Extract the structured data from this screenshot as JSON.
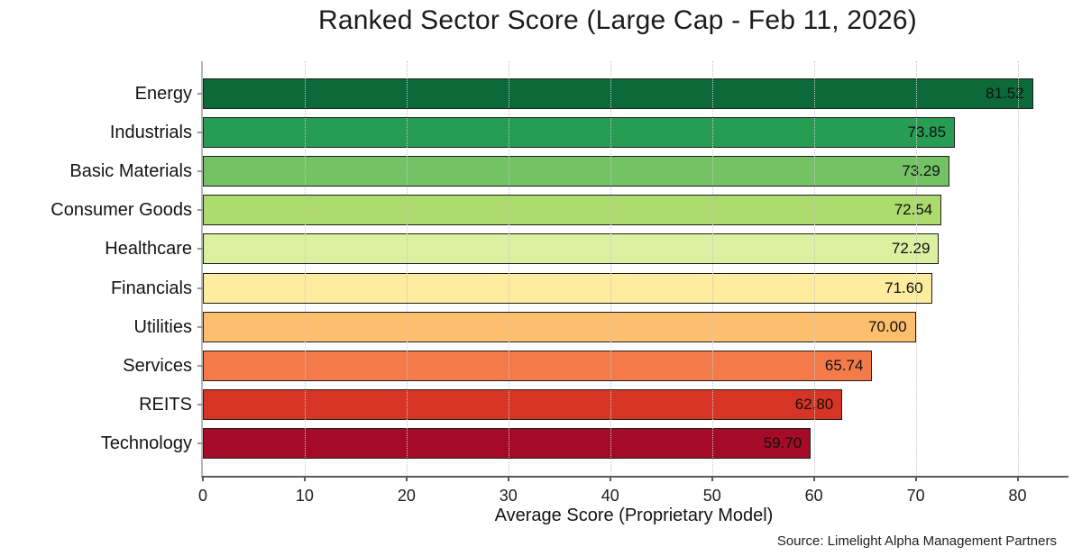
{
  "chart_data": {
    "type": "bar",
    "orientation": "horizontal",
    "title": "Ranked Sector Score (Large Cap - Feb 11, 2026)",
    "xlabel": "Average Score (Proprietary Model)",
    "ylabel": "",
    "source_note": "Source: Limelight Alpha Management Partners",
    "categories": [
      "Energy",
      "Industrials",
      "Basic Materials",
      "Consumer Goods",
      "Healthcare",
      "Financials",
      "Utilities",
      "Services",
      "REITS",
      "Technology"
    ],
    "values": [
      81.52,
      73.85,
      73.29,
      72.54,
      72.29,
      71.6,
      70.0,
      65.74,
      62.8,
      59.7
    ],
    "bar_colors": [
      "#0b6a38",
      "#279c53",
      "#73c264",
      "#acda6c",
      "#dcf0a2",
      "#fdeb9e",
      "#fdbe6e",
      "#f57a4a",
      "#d83425",
      "#a50b27"
    ],
    "bar_edge_color": "#1f1f1f",
    "xticks": [
      0,
      10,
      20,
      30,
      40,
      50,
      60,
      70,
      80
    ],
    "xlim": [
      0,
      85
    ],
    "grid": "vertical-dotted",
    "legend": "none",
    "value_label_decimals": 2
  }
}
